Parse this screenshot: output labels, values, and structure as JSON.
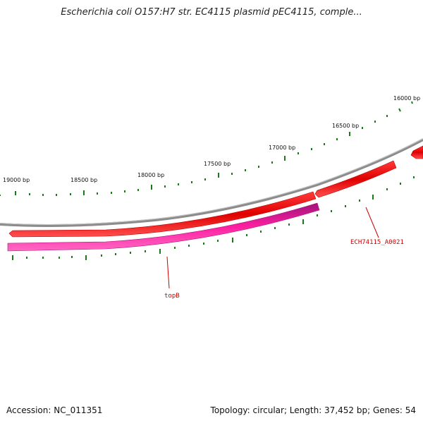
{
  "title": "Escherichia coli O157:H7 str. EC4115 plasmid pEC4115, comple...",
  "footer": {
    "accession": "Accession: NC_011351",
    "summary": "Topology: circular; Length: 37,452 bp; Genes: 54"
  },
  "ticks": [
    "19000 bp",
    "18500 bp",
    "18000 bp",
    "17500 bp",
    "17000 bp",
    "16500 bp",
    "16000 bp"
  ],
  "genes": [
    {
      "label": "topB"
    },
    {
      "label": "ECH74115_A0021"
    }
  ],
  "colors": {
    "backbone": "#8c8c8c",
    "cds_forward": "#ee0000",
    "cds_reverse": "#e8198b",
    "gc_skew": "#1a7a1a",
    "label": "#cc0000"
  }
}
